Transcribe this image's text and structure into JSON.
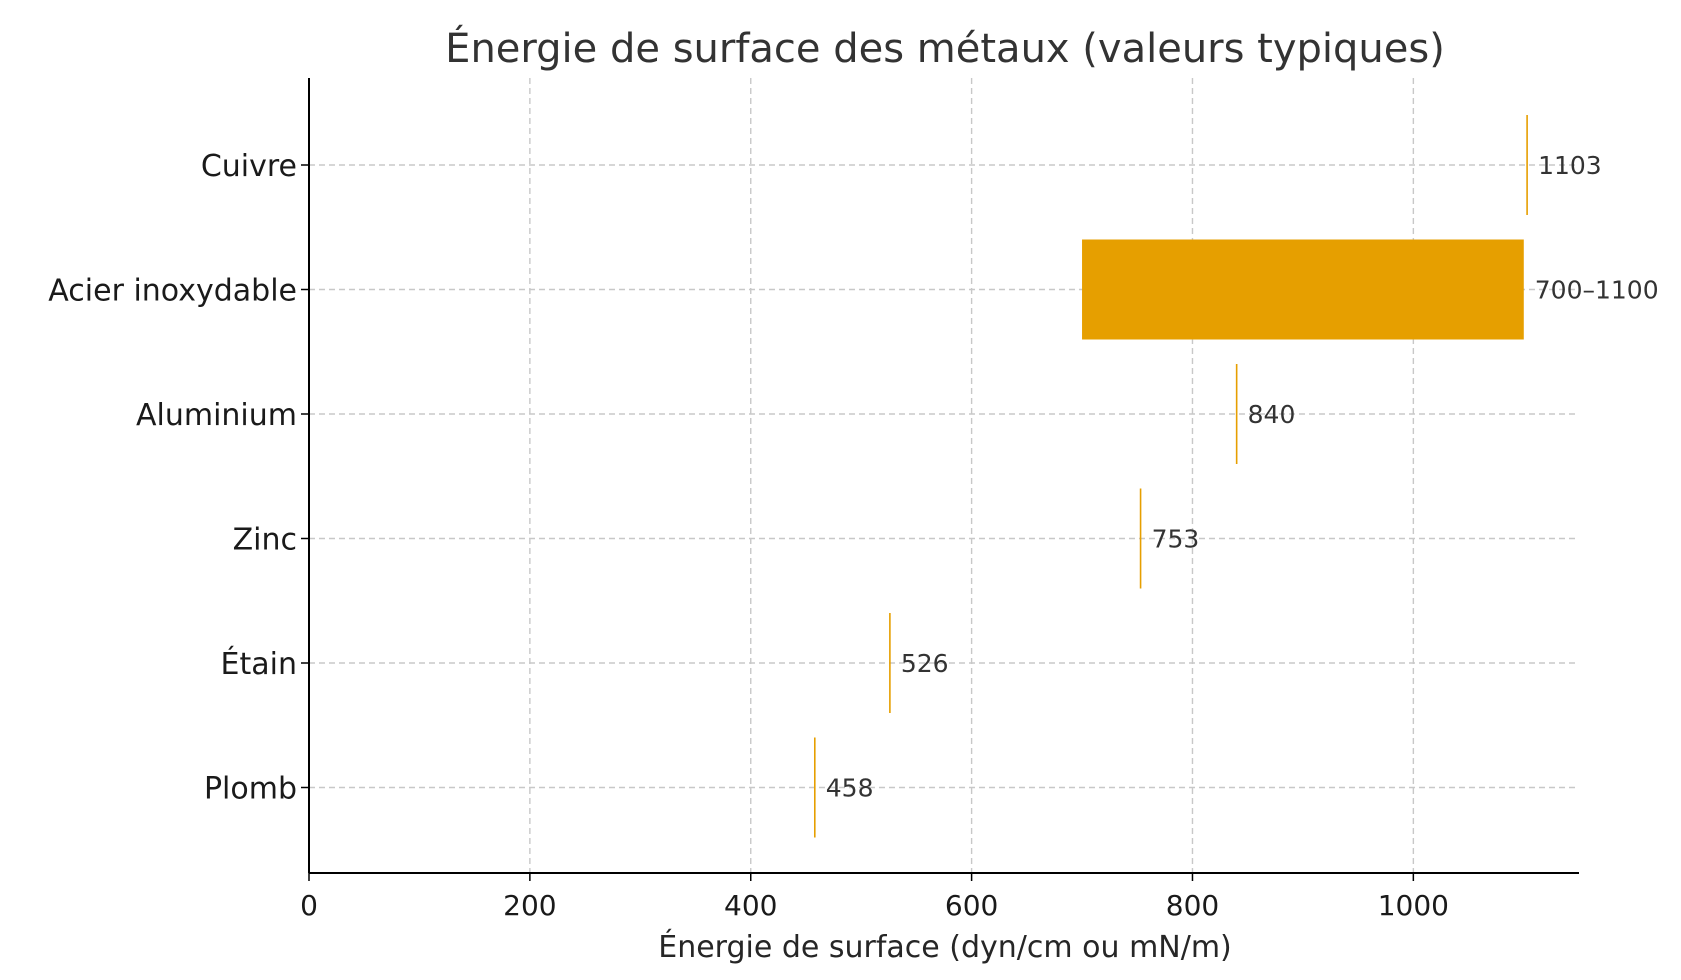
{
  "chart_data": {
    "type": "bar",
    "orientation": "horizontal",
    "title": "Énergie de surface des métaux (valeurs typiques)",
    "xlabel": "Énergie de surface (dyn/cm ou mN/m)",
    "ylabel": "",
    "xlim": [
      0,
      1150
    ],
    "xticks": [
      0,
      200,
      400,
      600,
      800,
      1000
    ],
    "grid": true,
    "legend": "none",
    "bar_color": "#E69F00",
    "categories": [
      "Cuivre",
      "Acier inoxydable",
      "Aluminium",
      "Zinc",
      "Étain",
      "Plomb"
    ],
    "ranges": [
      {
        "category": "Cuivre",
        "min": 1103,
        "max": 1103,
        "label": "1103"
      },
      {
        "category": "Acier inoxydable",
        "min": 700,
        "max": 1100,
        "label": "700–1100"
      },
      {
        "category": "Aluminium",
        "min": 840,
        "max": 840,
        "label": "840"
      },
      {
        "category": "Zinc",
        "min": 753,
        "max": 753,
        "label": "753"
      },
      {
        "category": "Étain",
        "min": 526,
        "max": 526,
        "label": "526"
      },
      {
        "category": "Plomb",
        "min": 458,
        "max": 458,
        "label": "458"
      }
    ]
  }
}
